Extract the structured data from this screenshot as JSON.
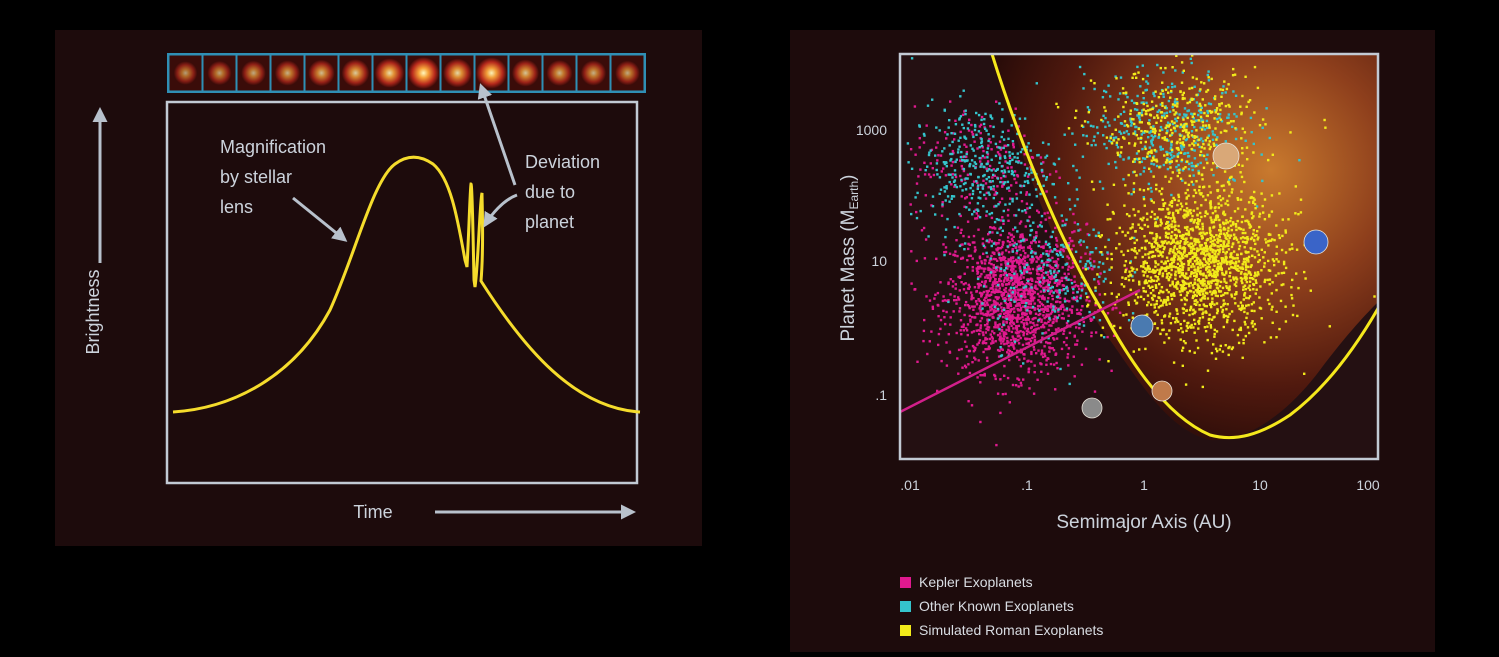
{
  "left": {
    "brightness_label": "Brightness",
    "time_label": "Time",
    "annot_magnification": [
      "Magnification",
      "by stellar",
      "lens"
    ],
    "annot_deviation": [
      "Deviation",
      "due to",
      "planet"
    ]
  },
  "right": {
    "ylabel_main": "Planet Mass (M",
    "ylabel_sub": "Earth",
    "ylabel_close": ")",
    "xlabel": "Semimajor Axis (AU)",
    "x_ticks": [
      ".01",
      ".1",
      "1",
      "10",
      "100"
    ],
    "y_ticks": [
      "1000",
      "10",
      ".1"
    ],
    "legend": [
      {
        "label": "Kepler Exoplanets",
        "color": "#e0198f"
      },
      {
        "label": "Other Known Exoplanets",
        "color": "#35c4cc"
      },
      {
        "label": "Simulated Roman Exoplanets",
        "color": "#f2ea1a"
      }
    ]
  },
  "chart_data": [
    {
      "type": "line",
      "xlabel": "Time",
      "ylabel": "Brightness",
      "series": [
        {
          "values": "microlensing light curve with planetary deviation spike"
        }
      ]
    },
    {
      "type": "scatter",
      "xlabel": "Semimajor Axis (AU)",
      "ylabel": "Planet Mass (M Earth)",
      "xscale": "log",
      "yscale": "log",
      "xlim": [
        0.01,
        100
      ],
      "ylim": [
        0.01,
        10000
      ],
      "series": [
        {
          "name": "Kepler Exoplanets",
          "color": "#e0198f",
          "clusters": [
            {
              "x": 0.08,
              "y": 3,
              "n": 1600
            },
            {
              "x": 0.04,
              "y": 300,
              "n": 200
            }
          ]
        },
        {
          "name": "Other Known Exoplanets",
          "color": "#35c4cc",
          "clusters": [
            {
              "x": 0.04,
              "y": 300,
              "n": 350
            },
            {
              "x": 1.5,
              "y": 1000,
              "n": 400
            },
            {
              "x": 0.15,
              "y": 8,
              "n": 250
            }
          ]
        },
        {
          "name": "Simulated Roman Exoplanets",
          "color": "#f2ea1a",
          "clusters": [
            {
              "x": 3,
              "y": 10,
              "n": 1700
            },
            {
              "x": 2,
              "y": 1000,
              "n": 400
            }
          ]
        }
      ]
    }
  ]
}
